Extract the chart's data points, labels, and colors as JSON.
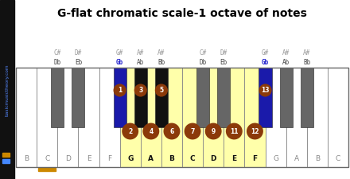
{
  "title": "G-flat chromatic scale-1 octave of notes",
  "bg_color": "#ffffff",
  "sidebar_bg": "#111111",
  "sidebar_text": "basicmusictheory.com",
  "sidebar_text_color": "#5588ff",
  "sidebar_icon_orange": "#cc8800",
  "sidebar_icon_blue": "#4488ff",
  "white_names": [
    "B",
    "C",
    "D",
    "E",
    "F",
    "G",
    "A",
    "B",
    "C",
    "D",
    "E",
    "F",
    "G",
    "A",
    "B",
    "C"
  ],
  "yellow_white_indices": [
    5,
    6,
    7,
    8,
    9,
    10,
    11
  ],
  "orange_underline_idx": 1,
  "bk_data": [
    {
      "after": 1,
      "sharp": "C#",
      "flat": "Db",
      "in_scale": false,
      "is_blue": false,
      "circle": null,
      "gray": true
    },
    {
      "after": 2,
      "sharp": "D#",
      "flat": "Eb",
      "in_scale": false,
      "is_blue": false,
      "circle": null,
      "gray": true
    },
    {
      "after": 4,
      "sharp": "G#",
      "flat": "Gb",
      "in_scale": true,
      "is_blue": true,
      "circle": 1,
      "gray": false
    },
    {
      "after": 5,
      "sharp": "A#",
      "flat": "Ab",
      "in_scale": true,
      "is_blue": false,
      "circle": 3,
      "gray": false
    },
    {
      "after": 6,
      "sharp": "A#",
      "flat": "Bb",
      "in_scale": true,
      "is_blue": false,
      "circle": 5,
      "gray": false
    },
    {
      "after": 8,
      "sharp": "C#",
      "flat": "Db",
      "in_scale": false,
      "is_blue": false,
      "circle": null,
      "gray": true
    },
    {
      "after": 9,
      "sharp": "D#",
      "flat": "Eb",
      "in_scale": false,
      "is_blue": false,
      "circle": null,
      "gray": true
    },
    {
      "after": 11,
      "sharp": "G#",
      "flat": "Gb",
      "in_scale": false,
      "is_blue": true,
      "circle": 13,
      "gray": false
    },
    {
      "after": 12,
      "sharp": "A#",
      "flat": "Ab",
      "in_scale": false,
      "is_blue": false,
      "circle": null,
      "gray": true
    },
    {
      "after": 13,
      "sharp": "A#",
      "flat": "Bb",
      "in_scale": false,
      "is_blue": false,
      "circle": null,
      "gray": true
    }
  ],
  "wk_circles": [
    {
      "idx": 5,
      "num": 2
    },
    {
      "idx": 6,
      "num": 4
    },
    {
      "idx": 7,
      "num": 6
    },
    {
      "idx": 8,
      "num": 7
    },
    {
      "idx": 9,
      "num": 9
    },
    {
      "idx": 10,
      "num": 11
    },
    {
      "idx": 11,
      "num": 12
    }
  ],
  "circle_color": "#8B3A0A",
  "circle_text_color": "#ffffff"
}
